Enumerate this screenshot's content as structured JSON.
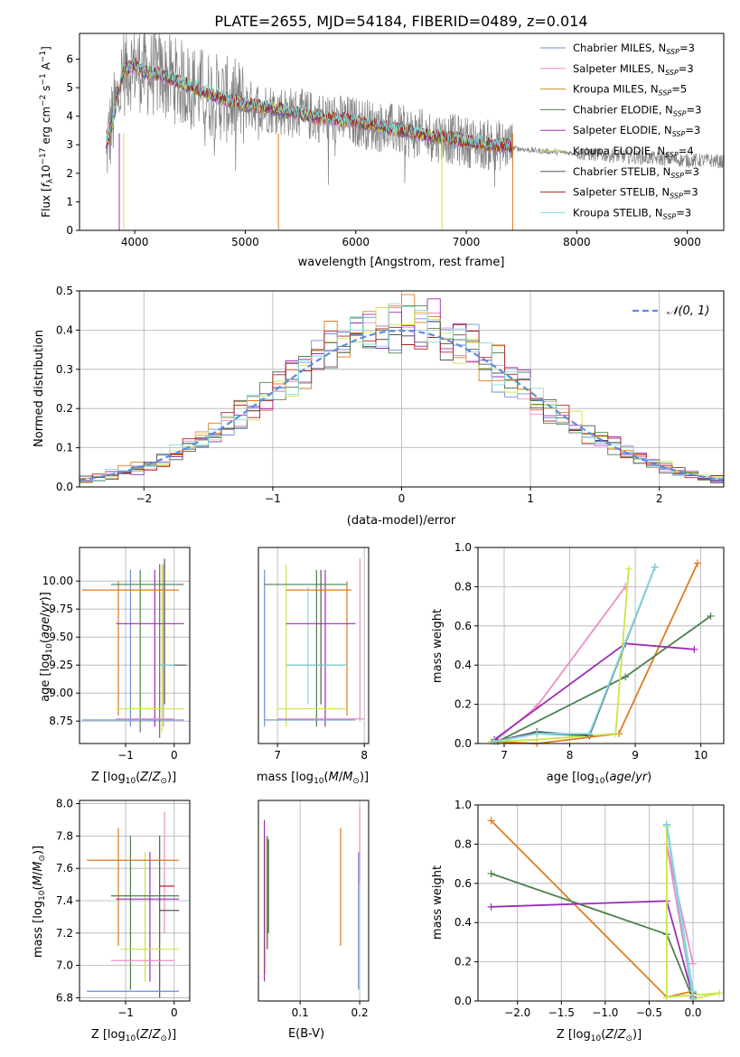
{
  "figure": {
    "title": "PLATE=2655, MJD=54184, FIBERID=0489, z=0.014"
  },
  "legend_labels": [
    {
      "name": "Chabrier MILES, N",
      "sub": "SSP",
      "tail": "=3",
      "color": "#6b8fd8"
    },
    {
      "name": "Salpeter MILES, N",
      "sub": "SSP",
      "tail": "=3",
      "color": "#e98fc7"
    },
    {
      "name": "Kroupa MILES, N",
      "sub": "SSP",
      "tail": "=5",
      "color": "#c4911c"
    },
    {
      "name": "Chabrier ELODIE, N",
      "sub": "SSP",
      "tail": "=3",
      "color": "#4f7f4f"
    },
    {
      "name": "Salpeter ELODIE, N",
      "sub": "SSP",
      "tail": "=3",
      "color": "#9a2fb5"
    },
    {
      "name": "Kroupa ELODIE, N",
      "sub": "SSP",
      "tail": "=4",
      "color": "#c8e64a"
    },
    {
      "name": "Chabrier STELIB, N",
      "sub": "SSP",
      "tail": "=3",
      "color": "#555555"
    },
    {
      "name": "Salpeter STELIB, N",
      "sub": "SSP",
      "tail": "=3",
      "color": "#b02020"
    },
    {
      "name": "Kroupa STELIB, N",
      "sub": "SSP",
      "tail": "=3",
      "color": "#7fdde0"
    }
  ],
  "panels": {
    "spectrum": {
      "xlabel": "wavelength [Angstrom, rest frame]",
      "ylabel_pre": "Flux [",
      "ylabel_mid": "f",
      "ylabel_sub": "λ",
      "ylabel_rest": "10",
      "ylabel_exp": "−17",
      "ylabel_units": " erg cm",
      "ylabel_units_exp": "−2",
      "ylabel_s": " s",
      "ylabel_s_exp": "−1",
      "ylabel_A": " A",
      "ylabel_A_exp": "−1",
      "ylabel_end": "]"
    },
    "resid": {
      "xlabel": "(data-model)/error",
      "ylabel": "Normed distribution",
      "legend": "𝒩(0, 1)"
    },
    "ageZ": {
      "xlabel": "Z [log",
      "ylabel": "age  [log"
    },
    "ageMass": {
      "xlabel": "mass [log"
    },
    "ageWeight": {
      "xlabel": "age  [log",
      "ylabel": "mass weight"
    },
    "massZ": {
      "xlabel": "Z [log",
      "ylabel": "mass [log"
    },
    "massEBV": {
      "xlabel": "E(B-V)"
    },
    "zWeight": {
      "xlabel": "Z [log",
      "ylabel": "mass weight"
    }
  },
  "chart_data": [
    {
      "type": "line",
      "title": "PLATE=2655, MJD=54184, FIBERID=0489, z=0.014",
      "xlabel": "wavelength [Angstrom, rest frame]",
      "ylabel": "Flux [f_λ 10^-17 erg cm^-2 s^-1 A^-1]",
      "xlim": [
        3500,
        9330
      ],
      "ylim": [
        0,
        6.9
      ],
      "xticks": [
        4000,
        5000,
        6000,
        7000,
        8000,
        9000
      ],
      "yticks": [
        0,
        1,
        2,
        3,
        4,
        5,
        6
      ],
      "data_color": "#808080",
      "model_envelope": {
        "x": [
          3750,
          3900,
          4000,
          4100,
          4200,
          4400,
          4600,
          4800,
          5000,
          5200,
          5400,
          5600,
          5800,
          6000,
          6200,
          6400,
          6600,
          6800,
          7000,
          7200,
          7400
        ],
        "y": [
          3.0,
          5.6,
          5.8,
          5.5,
          5.5,
          5.2,
          4.9,
          4.6,
          4.4,
          4.3,
          4.15,
          4.0,
          3.9,
          3.8,
          3.65,
          3.5,
          3.35,
          3.25,
          3.1,
          3.0,
          2.95
        ]
      },
      "data_tail": {
        "x": [
          7400,
          7600,
          7800,
          8000,
          8200,
          8400,
          8600,
          8800,
          9000,
          9200,
          9330
        ],
        "y": [
          2.9,
          2.8,
          2.75,
          2.7,
          2.65,
          2.6,
          2.55,
          2.5,
          2.45,
          2.45,
          2.4
        ]
      },
      "legend_position": "upper right",
      "grid": false
    },
    {
      "type": "line",
      "xlabel": "(data-model)/error",
      "ylabel": "Normed distribution",
      "xlim": [
        -2.5,
        2.5
      ],
      "ylim": [
        0,
        0.5
      ],
      "xticks": [
        -2,
        -1,
        0,
        1,
        2
      ],
      "yticks": [
        0.0,
        0.1,
        0.2,
        0.3,
        0.4,
        0.5
      ],
      "series": [
        {
          "name": "𝒩(0, 1)",
          "style": "dashed",
          "color": "#5b8ed8",
          "function": "gaussian",
          "mu": 0,
          "sigma": 1
        }
      ],
      "histogram_bin_width": 0.1,
      "legend_position": "upper right",
      "grid": true
    },
    {
      "type": "scatter",
      "xlabel": "Z [log10(Z/Z⊙)]",
      "ylabel": "age [log10(age/yr)]",
      "xlim": [
        -1.95,
        0.32
      ],
      "ylim": [
        8.55,
        10.3
      ],
      "xticks": [
        -1,
        0
      ],
      "yticks": [
        8.75,
        9.0,
        9.25,
        9.5,
        9.75,
        10.0
      ],
      "grid": true
    },
    {
      "type": "scatter",
      "xlabel": "mass [log10(M/M⊙)]",
      "xlim": [
        6.78,
        8.05
      ],
      "ylim": [
        8.55,
        10.3
      ],
      "xticks": [
        7,
        8
      ],
      "grid": true
    },
    {
      "type": "line",
      "xlabel": "age [log10(age/yr)]",
      "ylabel": "mass weight",
      "xlim": [
        6.6,
        10.35
      ],
      "ylim": [
        0,
        1
      ],
      "xticks": [
        7,
        8,
        9,
        10
      ],
      "yticks": [
        0.0,
        0.2,
        0.4,
        0.6,
        0.8,
        1.0
      ],
      "series": [
        {
          "color": "#6b8fd8",
          "x": [
            6.85,
            7.5,
            8.3,
            9.3
          ],
          "y": [
            0.01,
            0.05,
            0.04,
            0.9
          ]
        },
        {
          "color": "#e98fc7",
          "x": [
            6.85,
            7.5,
            8.85
          ],
          "y": [
            0.01,
            0.19,
            0.8
          ]
        },
        {
          "color": "#e07b20",
          "x": [
            6.8,
            7.5,
            8.75,
            9.95
          ],
          "y": [
            0.01,
            0.0,
            0.05,
            0.92
          ]
        },
        {
          "color": "#4f7f4f",
          "x": [
            6.9,
            8.85,
            10.15
          ],
          "y": [
            0.01,
            0.34,
            0.65
          ]
        },
        {
          "color": "#9a2fb5",
          "x": [
            6.85,
            8.85,
            9.9
          ],
          "y": [
            0.02,
            0.51,
            0.48
          ]
        },
        {
          "color": "#c8e64a",
          "x": [
            6.8,
            7.5,
            8.7,
            8.9
          ],
          "y": [
            0.01,
            0.02,
            0.05,
            0.89
          ]
        },
        {
          "color": "#555555",
          "x": [
            6.85,
            7.5,
            8.3,
            9.3
          ],
          "y": [
            0.01,
            0.06,
            0.04,
            0.9
          ]
        },
        {
          "color": "#7fdde0",
          "x": [
            6.85,
            7.5,
            8.3,
            9.3
          ],
          "y": [
            0.01,
            0.05,
            0.05,
            0.9
          ]
        }
      ],
      "grid": true
    },
    {
      "type": "scatter",
      "xlabel": "Z [log10(Z/Z⊙)]",
      "ylabel": "mass [log10(M/M⊙)]",
      "xlim": [
        -1.95,
        0.32
      ],
      "ylim": [
        6.78,
        8.02
      ],
      "xticks": [
        -1,
        0
      ],
      "yticks": [
        6.8,
        7.0,
        7.2,
        7.4,
        7.6,
        7.8,
        8.0
      ],
      "grid": true
    },
    {
      "type": "scatter",
      "xlabel": "E(B-V)",
      "xlim": [
        0.03,
        0.215
      ],
      "ylim": [
        6.78,
        8.02
      ],
      "xticks": [
        0.1,
        0.2
      ],
      "grid": true
    },
    {
      "type": "line",
      "xlabel": "Z [log10(Z/Z⊙)]",
      "ylabel": "mass weight",
      "xlim": [
        -2.45,
        0.35
      ],
      "ylim": [
        0,
        1
      ],
      "xticks": [
        -2.0,
        -1.5,
        -1.0,
        -0.5,
        0.0
      ],
      "yticks": [
        0.0,
        0.2,
        0.4,
        0.6,
        0.8,
        1.0
      ],
      "series": [
        {
          "color": "#6b8fd8",
          "x": [
            0.0,
            -0.3,
            0.0
          ],
          "y": [
            0.04,
            0.9,
            0.01
          ]
        },
        {
          "color": "#e98fc7",
          "x": [
            0.0,
            -0.3,
            0.0
          ],
          "y": [
            0.19,
            0.8,
            0.01
          ]
        },
        {
          "color": "#e07b20",
          "x": [
            -2.3,
            -0.3,
            0.0
          ],
          "y": [
            0.92,
            0.02,
            0.05
          ]
        },
        {
          "color": "#4f7f4f",
          "x": [
            -2.3,
            -0.3,
            0.0
          ],
          "y": [
            0.65,
            0.34,
            0.01
          ]
        },
        {
          "color": "#9a2fb5",
          "x": [
            -2.3,
            -0.3,
            0.0
          ],
          "y": [
            0.48,
            0.51,
            0.02
          ]
        },
        {
          "color": "#c8e64a",
          "x": [
            -0.3,
            -0.3,
            0.3,
            0.0
          ],
          "y": [
            0.89,
            0.02,
            0.04,
            0.01
          ]
        },
        {
          "color": "#555555",
          "x": [
            0.0,
            -0.3,
            0.0
          ],
          "y": [
            0.04,
            0.9,
            0.01
          ]
        },
        {
          "color": "#7fdde0",
          "x": [
            0.0,
            -0.3,
            0.0
          ],
          "y": [
            0.05,
            0.9,
            0.01
          ]
        }
      ],
      "grid": true
    }
  ]
}
